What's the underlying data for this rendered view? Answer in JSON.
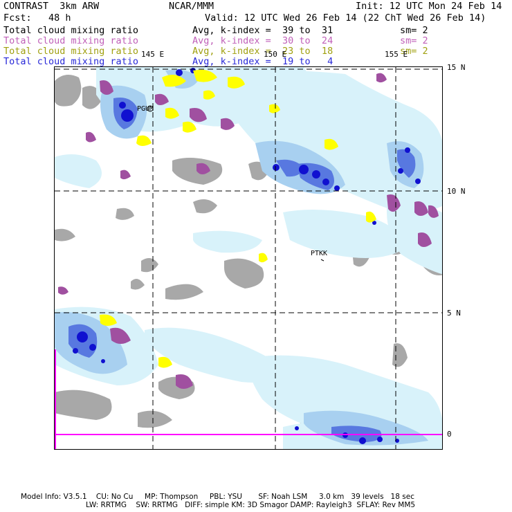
{
  "header": {
    "model": "CONTRAST  3km ARW",
    "center": "NCAR/MMM",
    "init": "Init: 12 UTC Mon 24 Feb 14",
    "fcst": "Fcst:   48 h",
    "valid": "Valid: 12 UTC Wed 26 Feb 14 (22 ChT Wed 26 Feb 14)"
  },
  "fields": [
    {
      "name": "Total cloud mixing ratio",
      "range": "Avg, k-index =  39 to  31",
      "sm": "sm= 2",
      "color": "#000000"
    },
    {
      "name": "Total cloud mixing ratio",
      "range": "Avg, k-index =  30 to  24",
      "sm": "sm= 2",
      "color": "#c060b8"
    },
    {
      "name": "Total cloud mixing ratio",
      "range": "Avg, k-index =  23 to  18",
      "sm": "sm= 2",
      "color": "#a0a010"
    },
    {
      "name": "Total cloud mixing ratio",
      "range": "Avg, k-index =  19 to   4",
      "sm": "",
      "color": "#2828d8"
    }
  ],
  "map": {
    "lon_labels": [
      "145 E",
      "150 E",
      "155 E"
    ],
    "lat_labels": [
      "15 N",
      "10 N",
      "5 N",
      "0"
    ],
    "stations": [
      "PGUM",
      "PTKK"
    ],
    "colors": {
      "gray": "#a8a8a8",
      "magenta": "#a050a0",
      "yellow": "#ffff00",
      "light_cyan": "#d8f2fa",
      "light_blue": "#a8d0f0",
      "mid_blue": "#5878e0",
      "dark_blue": "#1010d0",
      "boundary": "#ff00ff"
    }
  },
  "footer": {
    "line1": "Model Info: V3.5.1    CU: No Cu     MP: Thompson     PBL: YSU       SF: Noah LSM     3.0 km   39 levels   18 sec",
    "line2": "LW: RRTMG    SW: RRTMG   DIFF: simple KM: 3D Smagor DAMP: Rayleigh3  SFLAY: Rev MM5"
  }
}
